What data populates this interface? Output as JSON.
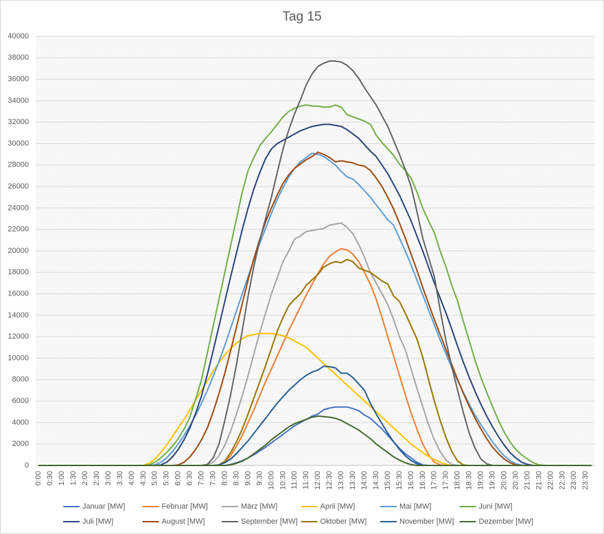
{
  "chart_data": {
    "type": "line",
    "title": "Tag 15",
    "categories": [
      "0:00",
      null,
      "0:30",
      null,
      "1:00",
      null,
      "1:30",
      null,
      "2:00",
      null,
      "2:30",
      null,
      "3:00",
      null,
      "3:30",
      null,
      "4:00",
      null,
      "4:30",
      null,
      "5:00",
      null,
      "5:30",
      null,
      "6:00",
      null,
      "6:30",
      null,
      "7:00",
      null,
      "7:30",
      null,
      "8:00",
      null,
      "8:30",
      null,
      "9:00",
      null,
      "9:30",
      null,
      "10:00",
      null,
      "10:30",
      null,
      "11:00",
      null,
      "11:30",
      null,
      "12:00",
      null,
      "12:30",
      null,
      "13:00",
      null,
      "13:30",
      null,
      "14:00",
      null,
      "14:30",
      null,
      "15:00",
      null,
      "15:30",
      null,
      "16:00",
      null,
      "16:30",
      null,
      "17:00",
      null,
      "17:30",
      null,
      "18:00",
      null,
      "18:30",
      null,
      "19:00",
      null,
      "19:30",
      null,
      "20:00",
      null,
      "20:30",
      null,
      "21:00",
      null,
      "21:30",
      null,
      "22:00",
      null,
      "22:30",
      null,
      "23:00",
      null,
      "23:30",
      null
    ],
    "ylim": [
      0,
      40000
    ],
    "yticks": [
      0,
      2000,
      4000,
      6000,
      8000,
      10000,
      12000,
      14000,
      16000,
      18000,
      20000,
      22000,
      24000,
      26000,
      28000,
      30000,
      32000,
      34000,
      36000,
      38000,
      40000
    ],
    "grid": true,
    "legend": "bottom",
    "series": [
      {
        "name": "Januar [MW]",
        "color": "#4472c4",
        "values": [
          0,
          0,
          0,
          0,
          0,
          0,
          0,
          0,
          0,
          0,
          0,
          0,
          0,
          0,
          0,
          0,
          0,
          0,
          0,
          0,
          0,
          0,
          0,
          0,
          0,
          0,
          0,
          0,
          0,
          0,
          0,
          0,
          0,
          100,
          250,
          450,
          700,
          1000,
          1350,
          1700,
          2100,
          2500,
          2900,
          3300,
          3700,
          4000,
          4300,
          4600,
          4800,
          5200,
          5350,
          5450,
          5450,
          5450,
          5300,
          5100,
          4700,
          4400,
          3900,
          3400,
          2800,
          2200,
          1600,
          1100,
          700,
          300,
          50,
          0,
          0,
          0,
          0,
          0,
          0,
          0,
          0,
          0,
          0,
          0,
          0,
          0,
          0,
          0,
          0,
          0,
          0,
          0,
          0,
          0,
          0,
          0,
          0,
          0,
          0,
          0,
          0,
          0
        ]
      },
      {
        "name": "Februar [MW]",
        "color": "#ed7d31",
        "values": [
          0,
          0,
          0,
          0,
          0,
          0,
          0,
          0,
          0,
          0,
          0,
          0,
          0,
          0,
          0,
          0,
          0,
          0,
          0,
          0,
          0,
          0,
          0,
          0,
          0,
          0,
          0,
          0,
          0,
          0,
          0,
          50,
          300,
          900,
          1800,
          2800,
          4000,
          5200,
          6500,
          7800,
          9000,
          10200,
          11400,
          12600,
          13700,
          14800,
          15900,
          16900,
          17900,
          18800,
          19500,
          19900,
          20200,
          20100,
          19700,
          19000,
          18000,
          16900,
          15500,
          13800,
          12000,
          10200,
          8400,
          6600,
          4900,
          3400,
          2000,
          1000,
          300,
          50,
          0,
          0,
          0,
          0,
          0,
          0,
          0,
          0,
          0,
          0,
          0,
          0,
          0,
          0,
          0,
          0,
          0,
          0,
          0,
          0,
          0,
          0,
          0,
          0,
          0,
          0
        ]
      },
      {
        "name": "März [MW]",
        "color": "#a5a5a5",
        "values": [
          0,
          0,
          0,
          0,
          0,
          0,
          0,
          0,
          0,
          0,
          0,
          0,
          0,
          0,
          0,
          0,
          0,
          0,
          0,
          0,
          0,
          0,
          0,
          0,
          0,
          0,
          0,
          0,
          0,
          50,
          300,
          900,
          1900,
          3200,
          4800,
          6500,
          8400,
          10400,
          12400,
          14200,
          16000,
          17500,
          19000,
          20000,
          21100,
          21400,
          21800,
          21900,
          22000,
          22100,
          22400,
          22500,
          22600,
          22200,
          21600,
          20600,
          19400,
          18000,
          17000,
          16000,
          15000,
          13600,
          12000,
          10800,
          9000,
          7200,
          5500,
          3800,
          2400,
          1300,
          500,
          100,
          0,
          0,
          0,
          0,
          0,
          0,
          0,
          0,
          0,
          0,
          0,
          0,
          0,
          0,
          0,
          0,
          0,
          0,
          0,
          0,
          0,
          0,
          0,
          0
        ]
      },
      {
        "name": "April [MW]",
        "color": "#ffc000",
        "values": [
          0,
          0,
          0,
          0,
          0,
          0,
          0,
          0,
          0,
          0,
          0,
          0,
          0,
          0,
          0,
          0,
          0,
          0,
          0,
          200,
          600,
          1200,
          1900,
          2700,
          3500,
          4300,
          5200,
          6100,
          7000,
          7900,
          8800,
          9600,
          10300,
          10900,
          11400,
          11800,
          12100,
          12200,
          12300,
          12300,
          12300,
          12200,
          12100,
          11900,
          11600,
          11300,
          11000,
          10500,
          10000,
          9500,
          9000,
          8500,
          8000,
          7500,
          7000,
          6500,
          6000,
          5500,
          5000,
          4500,
          4000,
          3500,
          3000,
          2500,
          2000,
          1600,
          1200,
          850,
          550,
          300,
          100,
          0,
          0,
          0,
          0,
          0,
          0,
          0,
          0,
          0,
          0,
          0,
          0,
          0,
          0,
          0,
          0,
          0,
          0,
          0,
          0,
          0,
          0,
          0,
          0,
          0
        ]
      },
      {
        "name": "Mai [MW]",
        "color": "#5b9bd5",
        "values": [
          0,
          0,
          0,
          0,
          0,
          0,
          0,
          0,
          0,
          0,
          0,
          0,
          0,
          0,
          0,
          0,
          0,
          0,
          0,
          0,
          50,
          300,
          700,
          1300,
          2000,
          2800,
          3700,
          4700,
          5800,
          7000,
          8300,
          9700,
          11200,
          12800,
          14400,
          16000,
          17600,
          19200,
          20700,
          22100,
          23500,
          24800,
          25900,
          26900,
          27700,
          28300,
          28700,
          29100,
          29000,
          28800,
          28400,
          28000,
          27400,
          26900,
          26700,
          26200,
          25600,
          25000,
          24300,
          23600,
          22900,
          22400,
          21200,
          20000,
          18700,
          17300,
          15900,
          14500,
          13100,
          11700,
          10400,
          9100,
          7900,
          6800,
          5700,
          4700,
          3800,
          3000,
          2200,
          1500,
          900,
          450,
          150,
          30,
          0,
          0,
          0,
          0,
          0,
          0,
          0,
          0,
          0,
          0,
          0,
          0
        ]
      },
      {
        "name": "Juni [MW]",
        "color": "#70ad47",
        "values": [
          0,
          0,
          0,
          0,
          0,
          0,
          0,
          0,
          0,
          0,
          0,
          0,
          0,
          0,
          0,
          0,
          0,
          0,
          0,
          50,
          300,
          700,
          1200,
          1800,
          2500,
          3400,
          4500,
          6200,
          8000,
          10500,
          13000,
          15500,
          18000,
          20500,
          23000,
          25500,
          27500,
          28700,
          29800,
          30500,
          31100,
          31800,
          32500,
          33000,
          33300,
          33500,
          33600,
          33500,
          33500,
          33400,
          33400,
          33600,
          33400,
          32700,
          32500,
          32300,
          32100,
          31800,
          30800,
          30100,
          29500,
          28900,
          28100,
          27500,
          26800,
          25500,
          24000,
          22800,
          21700,
          20000,
          18500,
          16800,
          15300,
          13400,
          11600,
          9800,
          8200,
          6800,
          5500,
          4200,
          3100,
          2200,
          1500,
          1000,
          600,
          250,
          50,
          0,
          0,
          0,
          0,
          0,
          0,
          0,
          0,
          0
        ]
      },
      {
        "name": "Juli [MW]",
        "color": "#264478",
        "values": [
          0,
          0,
          0,
          0,
          0,
          0,
          0,
          0,
          0,
          0,
          0,
          0,
          0,
          0,
          0,
          0,
          0,
          0,
          0,
          0,
          0,
          50,
          300,
          800,
          1500,
          2400,
          3500,
          4900,
          6500,
          8500,
          10700,
          13000,
          15300,
          17600,
          19800,
          22000,
          24000,
          25800,
          27300,
          28600,
          29500,
          30000,
          30300,
          30600,
          30900,
          31200,
          31400,
          31600,
          31700,
          31800,
          31800,
          31700,
          31600,
          31300,
          30900,
          30500,
          29900,
          29300,
          28800,
          28000,
          27200,
          26200,
          25200,
          24000,
          22800,
          21400,
          20000,
          18500,
          17000,
          15600,
          14200,
          12700,
          11100,
          9600,
          8200,
          6900,
          5700,
          4600,
          3600,
          2700,
          1900,
          1200,
          700,
          300,
          100,
          0,
          0,
          0,
          0,
          0,
          0,
          0,
          0,
          0,
          0,
          0
        ]
      },
      {
        "name": "August [MW]",
        "color": "#9e480e",
        "values": [
          0,
          0,
          0,
          0,
          0,
          0,
          0,
          0,
          0,
          0,
          0,
          0,
          0,
          0,
          0,
          0,
          0,
          0,
          0,
          0,
          0,
          0,
          0,
          0,
          50,
          300,
          800,
          1500,
          2400,
          3500,
          5000,
          6700,
          8600,
          10700,
          12900,
          15100,
          17300,
          19300,
          21100,
          22700,
          24000,
          25200,
          26300,
          27100,
          27700,
          28100,
          28500,
          28800,
          29200,
          29000,
          28700,
          28300,
          28400,
          28300,
          28200,
          28000,
          27900,
          27500,
          26800,
          26000,
          25000,
          23900,
          22600,
          21200,
          19700,
          18200,
          16600,
          15100,
          13600,
          12200,
          10800,
          9400,
          8000,
          6700,
          5500,
          4400,
          3400,
          2500,
          1700,
          1100,
          600,
          250,
          50,
          0,
          0,
          0,
          0,
          0,
          0,
          0,
          0,
          0,
          0,
          0,
          0,
          0
        ]
      },
      {
        "name": "September [MW]",
        "color": "#636363",
        "values": [
          0,
          0,
          0,
          0,
          0,
          0,
          0,
          0,
          0,
          0,
          0,
          0,
          0,
          0,
          0,
          0,
          0,
          0,
          0,
          0,
          0,
          0,
          0,
          0,
          0,
          0,
          0,
          0,
          0,
          100,
          700,
          2000,
          4200,
          6600,
          9400,
          12600,
          15800,
          18600,
          21000,
          23000,
          25000,
          27300,
          29500,
          31300,
          32800,
          34100,
          35500,
          36500,
          37200,
          37500,
          37700,
          37700,
          37600,
          37300,
          36800,
          36100,
          35200,
          34400,
          33600,
          32600,
          31600,
          30300,
          29000,
          27600,
          26000,
          23700,
          21200,
          19400,
          17600,
          14500,
          11600,
          9200,
          7000,
          4900,
          3000,
          1600,
          600,
          150,
          0,
          0,
          0,
          0,
          0,
          0,
          0,
          0,
          0,
          0,
          0,
          0,
          0,
          0,
          0,
          0,
          0,
          0
        ]
      },
      {
        "name": "Oktober [MW]",
        "color": "#997300",
        "values": [
          0,
          0,
          0,
          0,
          0,
          0,
          0,
          0,
          0,
          0,
          0,
          0,
          0,
          0,
          0,
          0,
          0,
          0,
          0,
          0,
          0,
          0,
          0,
          0,
          0,
          0,
          0,
          0,
          0,
          0,
          0,
          50,
          400,
          1200,
          2200,
          3400,
          4800,
          6300,
          7800,
          9300,
          10900,
          12500,
          13800,
          14900,
          15500,
          16000,
          16800,
          17300,
          17800,
          18500,
          18800,
          19000,
          18900,
          19200,
          19000,
          18400,
          18200,
          18000,
          17600,
          17200,
          16900,
          15800,
          15300,
          14200,
          13000,
          11800,
          10100,
          8000,
          6000,
          4200,
          2600,
          1300,
          400,
          50,
          0,
          0,
          0,
          0,
          0,
          0,
          0,
          0,
          0,
          0,
          0,
          0,
          0,
          0,
          0,
          0,
          0,
          0,
          0,
          0,
          0,
          0
        ]
      },
      {
        "name": "November [MW]",
        "color": "#255e91",
        "values": [
          0,
          0,
          0,
          0,
          0,
          0,
          0,
          0,
          0,
          0,
          0,
          0,
          0,
          0,
          0,
          0,
          0,
          0,
          0,
          0,
          0,
          0,
          0,
          0,
          0,
          0,
          0,
          0,
          0,
          0,
          0,
          50,
          250,
          600,
          1100,
          1700,
          2300,
          3000,
          3700,
          4400,
          5100,
          5800,
          6400,
          7000,
          7500,
          8000,
          8400,
          8700,
          8900,
          9250,
          9200,
          9100,
          8600,
          8600,
          8200,
          7600,
          7000,
          5800,
          4800,
          3900,
          3000,
          2200,
          1500,
          900,
          450,
          150,
          0,
          0,
          0,
          0,
          0,
          0,
          0,
          0,
          0,
          0,
          0,
          0,
          0,
          0,
          0,
          0,
          0,
          0,
          0,
          0,
          0,
          0,
          0,
          0,
          0,
          0,
          0,
          0,
          0,
          0
        ]
      },
      {
        "name": "Dezember [MW]",
        "color": "#43682b",
        "values": [
          0,
          0,
          0,
          0,
          0,
          0,
          0,
          0,
          0,
          0,
          0,
          0,
          0,
          0,
          0,
          0,
          0,
          0,
          0,
          0,
          0,
          0,
          0,
          0,
          0,
          0,
          0,
          0,
          0,
          0,
          0,
          0,
          0,
          50,
          200,
          400,
          700,
          1100,
          1500,
          1900,
          2400,
          2800,
          3200,
          3600,
          3900,
          4100,
          4300,
          4500,
          4600,
          4550,
          4500,
          4400,
          4200,
          3900,
          3600,
          3300,
          2900,
          2500,
          2000,
          1600,
          1200,
          800,
          500,
          250,
          80,
          0,
          0,
          0,
          0,
          0,
          0,
          0,
          0,
          0,
          0,
          0,
          0,
          0,
          0,
          0,
          0,
          0,
          0,
          0,
          0,
          0,
          0,
          0,
          0,
          0,
          0,
          0,
          0,
          0,
          0,
          0
        ]
      }
    ]
  }
}
